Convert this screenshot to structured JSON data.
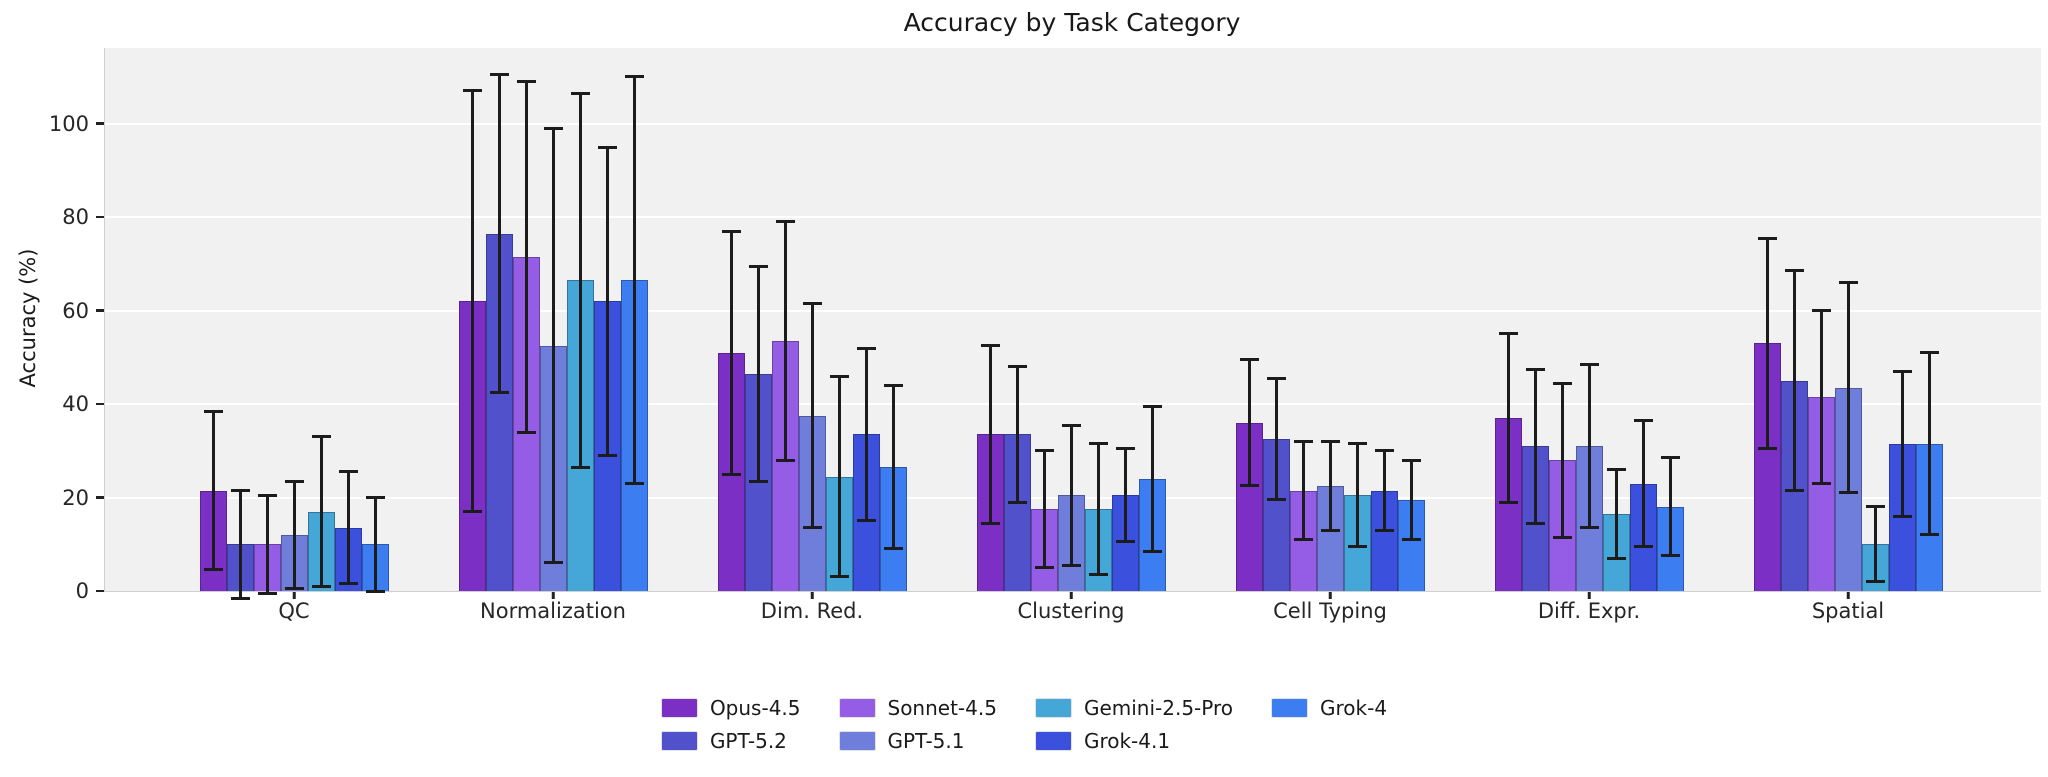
{
  "chart_data": {
    "type": "bar",
    "title": "Accuracy by Task Category",
    "xlabel": "",
    "ylabel": "Accuracy (%)",
    "ylim": [
      0,
      116.2
    ],
    "yticks": [
      0,
      20,
      40,
      60,
      80,
      100
    ],
    "grid": true,
    "legend_position": "bottom",
    "legend_columns": 4,
    "error_bars": true,
    "plot_background": "#f1f1f2",
    "gridline_color": "#ffffff",
    "error_bar_color": "#1c1c1c",
    "categories": [
      "QC",
      "Normalization",
      "Dim. Red.",
      "Clustering",
      "Cell Typing",
      "Diff. Expr.",
      "Spatial"
    ],
    "series": [
      {
        "name": "Opus-4.5",
        "color": "#7c2fc4",
        "values": [
          21.5,
          62.0,
          51.0,
          33.5,
          36.0,
          37.0,
          53.0
        ],
        "errors": [
          17.0,
          45.0,
          26.0,
          19.0,
          13.5,
          18.0,
          22.5
        ]
      },
      {
        "name": "GPT-5.2",
        "color": "#5151cb",
        "values": [
          10.0,
          76.5,
          46.5,
          33.5,
          32.5,
          31.0,
          45.0
        ],
        "errors": [
          11.5,
          34.0,
          23.0,
          14.5,
          13.0,
          16.5,
          23.5
        ]
      },
      {
        "name": "Sonnet-4.5",
        "color": "#955ce6",
        "values": [
          10.0,
          71.5,
          53.5,
          17.5,
          21.5,
          28.0,
          41.5
        ],
        "errors": [
          10.5,
          37.5,
          25.5,
          12.5,
          10.5,
          16.5,
          18.5
        ]
      },
      {
        "name": "GPT-5.1",
        "color": "#6f7edb",
        "values": [
          12.0,
          52.5,
          37.5,
          20.5,
          22.5,
          31.0,
          43.5
        ],
        "errors": [
          11.5,
          46.5,
          24.0,
          15.0,
          9.5,
          17.5,
          22.5
        ]
      },
      {
        "name": "Gemini-2.5-Pro",
        "color": "#45a6d8",
        "values": [
          17.0,
          66.5,
          24.5,
          17.5,
          20.5,
          16.5,
          10.0
        ],
        "errors": [
          16.0,
          40.0,
          21.5,
          14.0,
          11.0,
          9.5,
          8.0
        ]
      },
      {
        "name": "Grok-4.1",
        "color": "#3b51de",
        "values": [
          13.5,
          62.0,
          33.5,
          20.5,
          21.5,
          23.0,
          31.5
        ],
        "errors": [
          12.0,
          33.0,
          18.5,
          10.0,
          8.5,
          13.5,
          15.5
        ]
      },
      {
        "name": "Grok-4",
        "color": "#3c7ef2",
        "values": [
          10.0,
          66.5,
          26.5,
          24.0,
          19.5,
          18.0,
          31.5
        ],
        "errors": [
          10.0,
          43.5,
          17.5,
          15.5,
          8.5,
          10.5,
          19.5
        ]
      }
    ]
  }
}
